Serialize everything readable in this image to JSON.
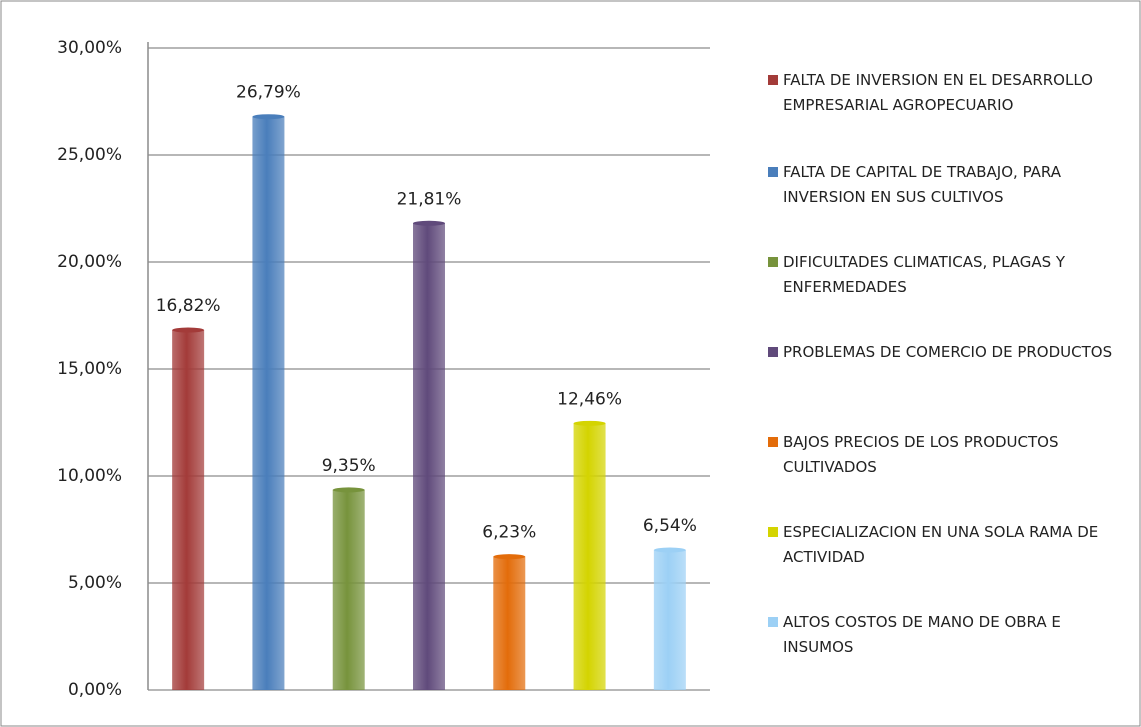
{
  "chart_data": {
    "type": "bar",
    "categories": [
      null
    ],
    "series": [
      {
        "name": "FALTA DE INVERSION EN EL DESARROLLO EMPRESARIAL AGROPECUARIO",
        "color": "#a33b39",
        "values": [
          16.82
        ],
        "value_labels": [
          "16,82%"
        ]
      },
      {
        "name": "FALTA DE CAPITAL DE TRABAJO, PARA INVERSION EN SUS CULTIVOS",
        "color": "#4a7ebb",
        "values": [
          26.79
        ],
        "value_labels": [
          "26,79%"
        ]
      },
      {
        "name": "DIFICULTADES CLIMATICAS, PLAGAS Y ENFERMEDADES",
        "color": "#77933c",
        "values": [
          9.35
        ],
        "value_labels": [
          "9,35%"
        ]
      },
      {
        "name": "PROBLEMAS DE COMERCIO DE PRODUCTOS",
        "color": "#604a7b",
        "values": [
          21.81
        ],
        "value_labels": [
          "21,81%"
        ]
      },
      {
        "name": "BAJOS PRECIOS DE LOS PRODUCTOS CULTIVADOS",
        "color": "#e36c0a",
        "values": [
          6.23
        ],
        "value_labels": [
          "6,23%"
        ]
      },
      {
        "name": "ESPECIALIZACION EN UNA SOLA RAMA DE ACTIVIDAD",
        "color": "#d4d400",
        "values": [
          12.46
        ],
        "value_labels": [
          "12,46%"
        ]
      },
      {
        "name": "ALTOS COSTOS DE MANO DE OBRA E INSUMOS",
        "color": "#9cd0f5",
        "values": [
          6.54
        ],
        "value_labels": [
          "6,54%"
        ]
      }
    ],
    "ylim": [
      0,
      30
    ],
    "yticks": [
      {
        "value": 0,
        "label": "0,00%"
      },
      {
        "value": 5,
        "label": "5,00%"
      },
      {
        "value": 10,
        "label": "10,00%"
      },
      {
        "value": 15,
        "label": "15,00%"
      },
      {
        "value": 20,
        "label": "20,00%"
      },
      {
        "value": 25,
        "label": "25,00%"
      },
      {
        "value": 30,
        "label": "30,00%"
      }
    ],
    "grid": true,
    "legend": "right"
  }
}
